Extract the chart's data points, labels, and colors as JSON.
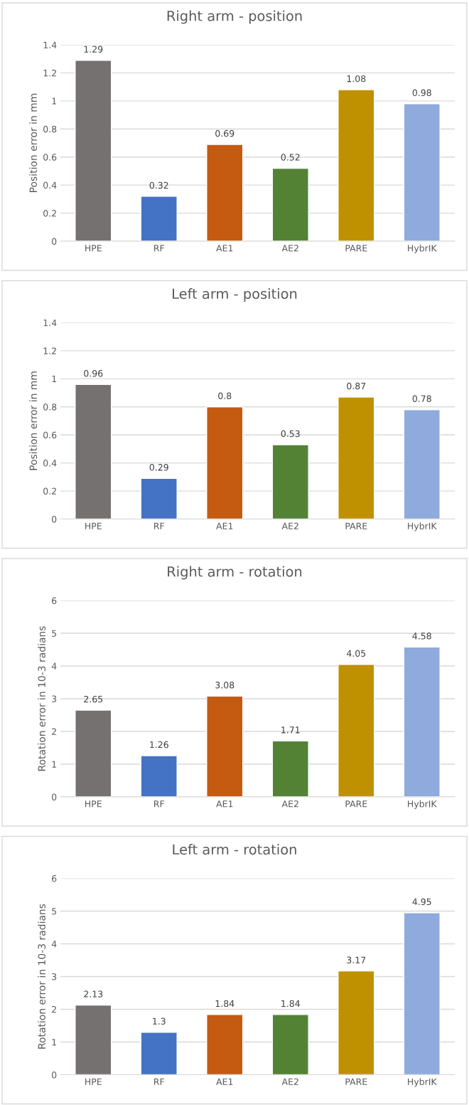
{
  "chart_data": [
    {
      "type": "bar",
      "title": "Right arm - position",
      "ylabel": "Position error in mm",
      "categories": [
        "HPE",
        "RF",
        "AE1",
        "AE2",
        "PARE",
        "HybrIK"
      ],
      "values": [
        1.29,
        0.32,
        0.69,
        0.52,
        1.08,
        0.98
      ],
      "colors": [
        "#767171",
        "#4472c4",
        "#c55a11",
        "#548235",
        "#bf9000",
        "#8faadc"
      ],
      "ylim": [
        0,
        1.4
      ],
      "yticks": [
        0,
        0.2,
        0.4,
        0.6,
        0.8,
        1,
        1.2,
        1.4
      ],
      "grid": "y",
      "data_labels": true
    },
    {
      "type": "bar",
      "title": "Left arm - position",
      "ylabel": "Position error in mm",
      "categories": [
        "HPE",
        "RF",
        "AE1",
        "AE2",
        "PARE",
        "HybrIK"
      ],
      "values": [
        0.96,
        0.29,
        0.8,
        0.53,
        0.87,
        0.78
      ],
      "colors": [
        "#767171",
        "#4472c4",
        "#c55a11",
        "#548235",
        "#bf9000",
        "#8faadc"
      ],
      "ylim": [
        0,
        1.4
      ],
      "yticks": [
        0,
        0.2,
        0.4,
        0.6,
        0.8,
        1,
        1.2,
        1.4
      ],
      "grid": "y",
      "data_labels": true
    },
    {
      "type": "bar",
      "title": "Right arm - rotation",
      "ylabel": "Rotation error in 10-3 radians",
      "categories": [
        "HPE",
        "RF",
        "AE1",
        "AE2",
        "PARE",
        "HybrIK"
      ],
      "values": [
        2.65,
        1.26,
        3.08,
        1.71,
        4.05,
        4.58
      ],
      "colors": [
        "#767171",
        "#4472c4",
        "#c55a11",
        "#548235",
        "#bf9000",
        "#8faadc"
      ],
      "ylim": [
        0,
        6
      ],
      "yticks": [
        0,
        1,
        2,
        3,
        4,
        5,
        6
      ],
      "grid": "y",
      "data_labels": true
    },
    {
      "type": "bar",
      "title": "Left arm - rotation",
      "ylabel": "Rotation error in 10-3 radians",
      "categories": [
        "HPE",
        "RF",
        "AE1",
        "AE2",
        "PARE",
        "HybrIK"
      ],
      "values": [
        2.13,
        1.3,
        1.84,
        1.84,
        3.17,
        4.95
      ],
      "colors": [
        "#767171",
        "#4472c4",
        "#c55a11",
        "#548235",
        "#bf9000",
        "#8faadc"
      ],
      "ylim": [
        0,
        6
      ],
      "yticks": [
        0,
        1,
        2,
        3,
        4,
        5,
        6
      ],
      "grid": "y",
      "data_labels": true
    }
  ]
}
